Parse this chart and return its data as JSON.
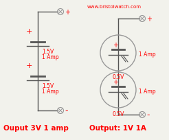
{
  "bg_color": "#f2f2ec",
  "red": "#ff0000",
  "dark": "#555555",
  "gray": "#999999",
  "website": "www.bristolwatch.com",
  "left_label": "Ouput 3V 1 amp",
  "right_label": "Output: 1V 1A",
  "bat1_text": [
    "1.5V",
    "1 Amp"
  ],
  "bat2_text": [
    "1.5V",
    "1 Amp"
  ],
  "bat3_text": [
    "1 Amp",
    "0.5V"
  ],
  "bat4_text": [
    "1 Amp",
    "0.5V"
  ],
  "figw": 2.46,
  "figh": 2.05,
  "dpi": 100
}
